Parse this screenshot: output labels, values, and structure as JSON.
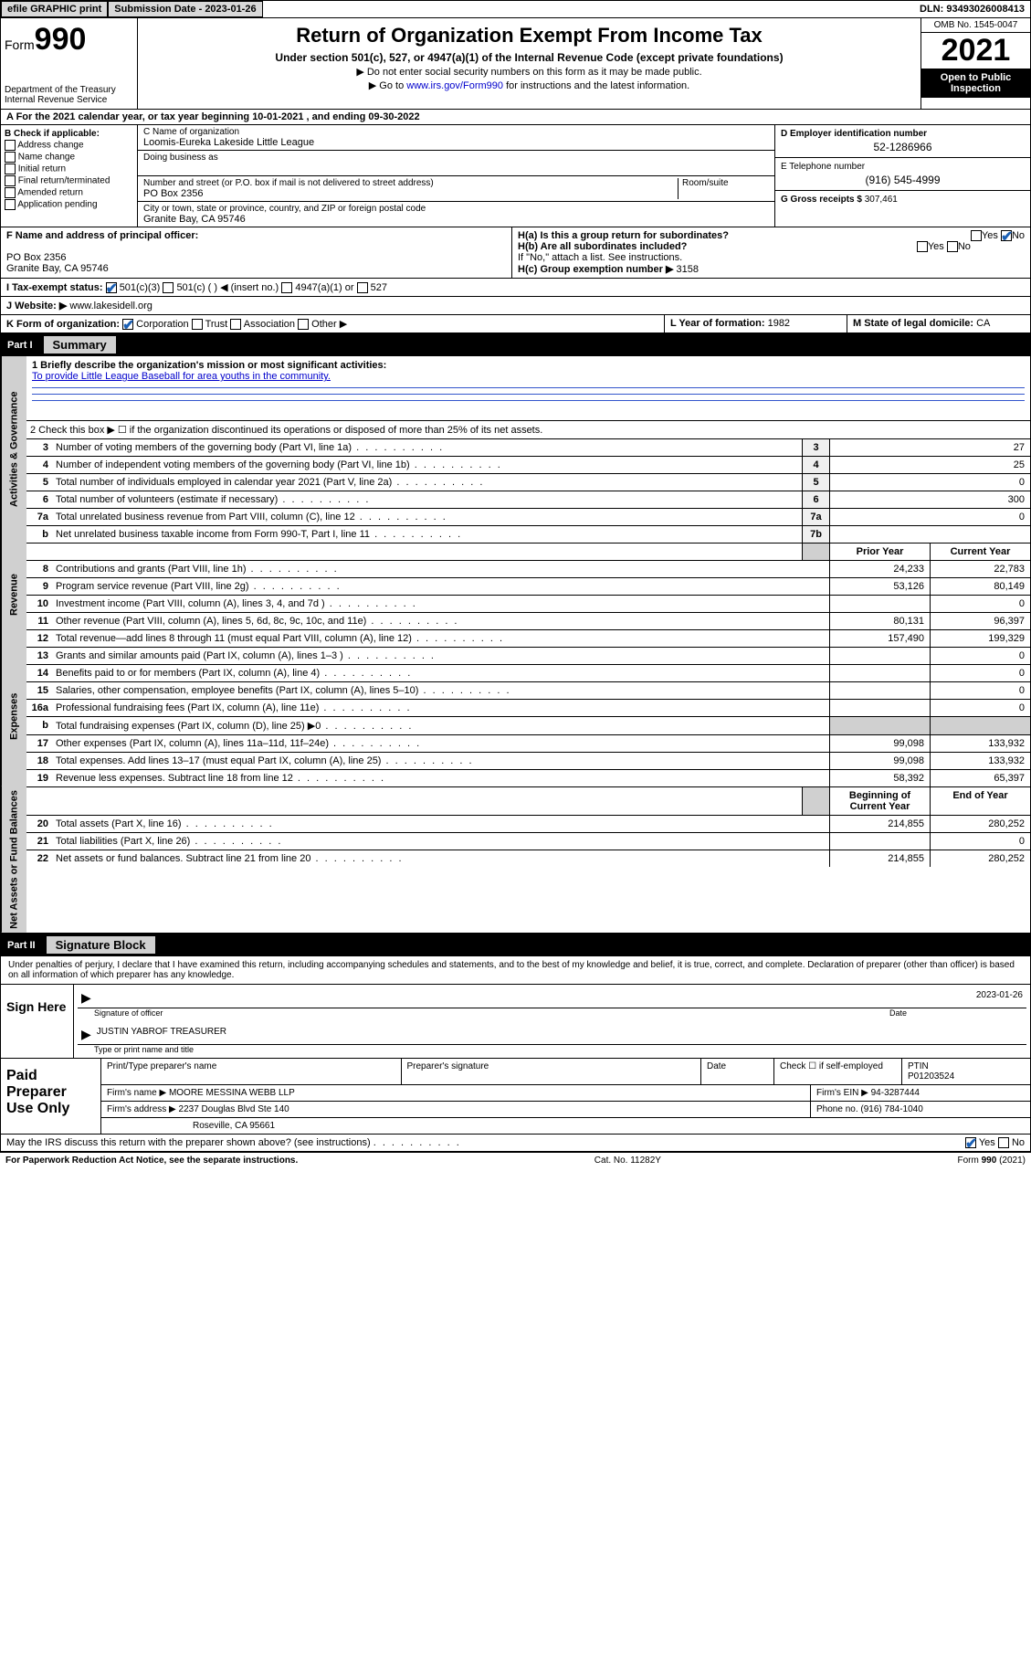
{
  "top_bar": {
    "efile": "efile GRAPHIC print",
    "submission_label": "Submission Date - 2023-01-26",
    "dln": "DLN: 93493026008413"
  },
  "header": {
    "form_prefix": "Form",
    "form_number": "990",
    "title": "Return of Organization Exempt From Income Tax",
    "subtitle": "Under section 501(c), 527, or 4947(a)(1) of the Internal Revenue Code (except private foundations)",
    "note1": "▶ Do not enter social security numbers on this form as it may be made public.",
    "note2_pre": "▶ Go to ",
    "note2_link": "www.irs.gov/Form990",
    "note2_post": " for instructions and the latest information.",
    "dept": "Department of the Treasury\nInternal Revenue Service",
    "omb": "OMB No. 1545-0047",
    "year": "2021",
    "inspection": "Open to Public Inspection"
  },
  "section_a": "A For the 2021 calendar year, or tax year beginning 10-01-2021   , and ending 09-30-2022",
  "box_b": {
    "label": "B Check if applicable:",
    "items": [
      "Address change",
      "Name change",
      "Initial return",
      "Final return/terminated",
      "Amended return",
      "Application pending"
    ]
  },
  "box_c": {
    "name_label": "C Name of organization",
    "name": "Loomis-Eureka Lakeside Little League",
    "dba_label": "Doing business as",
    "street_label": "Number and street (or P.O. box if mail is not delivered to street address)",
    "room_label": "Room/suite",
    "street": "PO Box 2356",
    "city_label": "City or town, state or province, country, and ZIP or foreign postal code",
    "city": "Granite Bay, CA  95746"
  },
  "box_d": {
    "label": "D Employer identification number",
    "value": "52-1286966"
  },
  "box_e": {
    "label": "E Telephone number",
    "value": "(916) 545-4999"
  },
  "box_g": {
    "label": "G Gross receipts $",
    "value": "307,461"
  },
  "box_f": {
    "label": "F Name and address of principal officer:",
    "line1": "PO Box 2356",
    "line2": "Granite Bay, CA  95746"
  },
  "box_h": {
    "ha": "H(a)  Is this a group return for subordinates?",
    "ha_yes": "Yes",
    "ha_no": "No",
    "hb": "H(b)  Are all subordinates included?",
    "hb_yes": "Yes",
    "hb_no": "No",
    "hb_note": "If \"No,\" attach a list. See instructions.",
    "hc": "H(c)  Group exemption number ▶",
    "hc_val": "3158"
  },
  "box_i": {
    "label": "I     Tax-exempt status:",
    "opts": [
      "501(c)(3)",
      "501(c) (   ) ◀ (insert no.)",
      "4947(a)(1) or",
      "527"
    ]
  },
  "box_j": {
    "label": "J    Website: ▶",
    "value": "www.lakesidell.org"
  },
  "box_k": {
    "label": "K Form of organization:",
    "opts": [
      "Corporation",
      "Trust",
      "Association",
      "Other ▶"
    ]
  },
  "box_l": {
    "label": "L Year of formation:",
    "value": "1982"
  },
  "box_m": {
    "label": "M State of legal domicile:",
    "value": "CA"
  },
  "parts": {
    "p1_label": "Part I",
    "p1_title": "Summary",
    "p2_label": "Part II",
    "p2_title": "Signature Block"
  },
  "summary": {
    "vtabs": [
      "Activities & Governance",
      "Revenue",
      "Expenses",
      "Net Assets or Fund Balances"
    ],
    "line1_label": "1   Briefly describe the organization's mission or most significant activities:",
    "line1_text": "To provide Little League Baseball for area youths in the community.",
    "line2": "2   Check this box ▶ ☐  if the organization discontinued its operations or disposed of more than 25% of its net assets.",
    "cols": {
      "py": "Prior Year",
      "cy": "Current Year",
      "boy": "Beginning of Current Year",
      "eoy": "End of Year"
    },
    "rows_gov": [
      {
        "n": "3",
        "t": "Number of voting members of the governing body (Part VI, line 1a)",
        "rn": "3",
        "v": "27"
      },
      {
        "n": "4",
        "t": "Number of independent voting members of the governing body (Part VI, line 1b)",
        "rn": "4",
        "v": "25"
      },
      {
        "n": "5",
        "t": "Total number of individuals employed in calendar year 2021 (Part V, line 2a)",
        "rn": "5",
        "v": "0"
      },
      {
        "n": "6",
        "t": "Total number of volunteers (estimate if necessary)",
        "rn": "6",
        "v": "300"
      },
      {
        "n": "7a",
        "t": "Total unrelated business revenue from Part VIII, column (C), line 12",
        "rn": "7a",
        "v": "0"
      },
      {
        "n": "b",
        "t": "Net unrelated business taxable income from Form 990-T, Part I, line 11",
        "rn": "7b",
        "v": ""
      }
    ],
    "rows_rev": [
      {
        "n": "8",
        "t": "Contributions and grants (Part VIII, line 1h)",
        "py": "24,233",
        "cy": "22,783"
      },
      {
        "n": "9",
        "t": "Program service revenue (Part VIII, line 2g)",
        "py": "53,126",
        "cy": "80,149"
      },
      {
        "n": "10",
        "t": "Investment income (Part VIII, column (A), lines 3, 4, and 7d )",
        "py": "",
        "cy": "0"
      },
      {
        "n": "11",
        "t": "Other revenue (Part VIII, column (A), lines 5, 6d, 8c, 9c, 10c, and 11e)",
        "py": "80,131",
        "cy": "96,397"
      },
      {
        "n": "12",
        "t": "Total revenue—add lines 8 through 11 (must equal Part VIII, column (A), line 12)",
        "py": "157,490",
        "cy": "199,329"
      }
    ],
    "rows_exp": [
      {
        "n": "13",
        "t": "Grants and similar amounts paid (Part IX, column (A), lines 1–3 )",
        "py": "",
        "cy": "0"
      },
      {
        "n": "14",
        "t": "Benefits paid to or for members (Part IX, column (A), line 4)",
        "py": "",
        "cy": "0"
      },
      {
        "n": "15",
        "t": "Salaries, other compensation, employee benefits (Part IX, column (A), lines 5–10)",
        "py": "",
        "cy": "0"
      },
      {
        "n": "16a",
        "t": "Professional fundraising fees (Part IX, column (A), line 11e)",
        "py": "",
        "cy": "0"
      },
      {
        "n": "b",
        "t": "Total fundraising expenses (Part IX, column (D), line 25) ▶0",
        "py": "shade",
        "cy": "shade"
      },
      {
        "n": "17",
        "t": "Other expenses (Part IX, column (A), lines 11a–11d, 11f–24e)",
        "py": "99,098",
        "cy": "133,932"
      },
      {
        "n": "18",
        "t": "Total expenses. Add lines 13–17 (must equal Part IX, column (A), line 25)",
        "py": "99,098",
        "cy": "133,932"
      },
      {
        "n": "19",
        "t": "Revenue less expenses. Subtract line 18 from line 12",
        "py": "58,392",
        "cy": "65,397"
      }
    ],
    "rows_net": [
      {
        "n": "20",
        "t": "Total assets (Part X, line 16)",
        "py": "214,855",
        "cy": "280,252"
      },
      {
        "n": "21",
        "t": "Total liabilities (Part X, line 26)",
        "py": "",
        "cy": "0"
      },
      {
        "n": "22",
        "t": "Net assets or fund balances. Subtract line 21 from line 20",
        "py": "214,855",
        "cy": "280,252"
      }
    ]
  },
  "signature": {
    "intro": "Under penalties of perjury, I declare that I have examined this return, including accompanying schedules and statements, and to the best of my knowledge and belief, it is true, correct, and complete. Declaration of preparer (other than officer) is based on all information of which preparer has any knowledge.",
    "sign_here": "Sign Here",
    "sig_officer": "Signature of officer",
    "date_label": "Date",
    "date": "2023-01-26",
    "name_title": "JUSTIN YABROF TREASURER",
    "name_title_label": "Type or print name and title"
  },
  "preparer": {
    "left": "Paid Preparer Use Only",
    "h_name": "Print/Type preparer's name",
    "h_sig": "Preparer's signature",
    "h_date": "Date",
    "h_check": "Check ☐ if self-employed",
    "h_ptin": "PTIN",
    "ptin": "P01203524",
    "firm_name_label": "Firm's name    ▶",
    "firm_name": "MOORE MESSINA WEBB LLP",
    "firm_ein_label": "Firm's EIN ▶",
    "firm_ein": "94-3287444",
    "firm_addr_label": "Firm's address ▶",
    "firm_addr1": "2237 Douglas Blvd Ste 140",
    "firm_addr2": "Roseville, CA  95661",
    "phone_label": "Phone no.",
    "phone": "(916) 784-1040"
  },
  "discuss": {
    "q": "May the IRS discuss this return with the preparer shown above? (see instructions)",
    "yes": "Yes",
    "no": "No"
  },
  "footer": {
    "left": "For Paperwork Reduction Act Notice, see the separate instructions.",
    "mid": "Cat. No. 11282Y",
    "right": "Form 990 (2021)"
  }
}
